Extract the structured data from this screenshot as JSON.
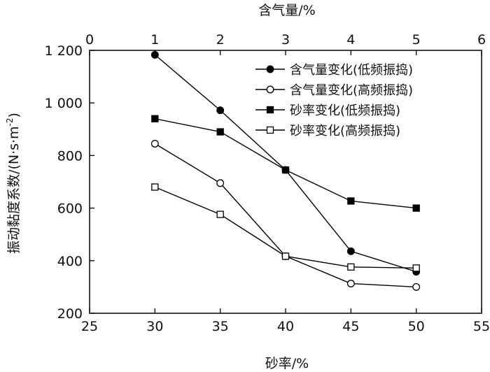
{
  "chart_data": {
    "type": "line",
    "xlabel": "砂率/%",
    "x2label": "含气量/%",
    "ylabel": "振动黏度系数/(N·s·m",
    "ylabel_sup": "-2",
    "ylabel_close": ")",
    "xlim": [
      25,
      55
    ],
    "x2lim": [
      0,
      6
    ],
    "ylim": [
      200,
      1200
    ],
    "xticks": [
      25,
      30,
      35,
      40,
      45,
      50,
      55
    ],
    "x2ticks": [
      0,
      1,
      2,
      3,
      4,
      5,
      6
    ],
    "yticks": [
      200,
      400,
      600,
      800,
      1000,
      1200
    ],
    "ytick_labels": [
      "200",
      "400",
      "600",
      "800",
      "1 000",
      "1 200"
    ],
    "legend_position": "top-right",
    "series": [
      {
        "name": "含气量变化(低频振捣)",
        "axis": "top",
        "marker": "circle-filled",
        "x": [
          1,
          2,
          3,
          4,
          5
        ],
        "y": [
          1183,
          972,
          745,
          436,
          358
        ]
      },
      {
        "name": "含气量变化(高频振捣)",
        "axis": "top",
        "marker": "circle-open",
        "x": [
          1,
          2,
          3,
          4,
          5
        ],
        "y": [
          845,
          695,
          417,
          313,
          300
        ]
      },
      {
        "name": "砂率变化(低频振捣)",
        "axis": "bottom",
        "marker": "square-filled",
        "x": [
          30,
          35,
          40,
          45,
          50
        ],
        "y": [
          940,
          890,
          745,
          627,
          600
        ]
      },
      {
        "name": "砂率变化(高频振捣)",
        "axis": "bottom",
        "marker": "square-open",
        "x": [
          30,
          35,
          40,
          45,
          50
        ],
        "y": [
          680,
          576,
          417,
          376,
          372
        ]
      }
    ]
  }
}
